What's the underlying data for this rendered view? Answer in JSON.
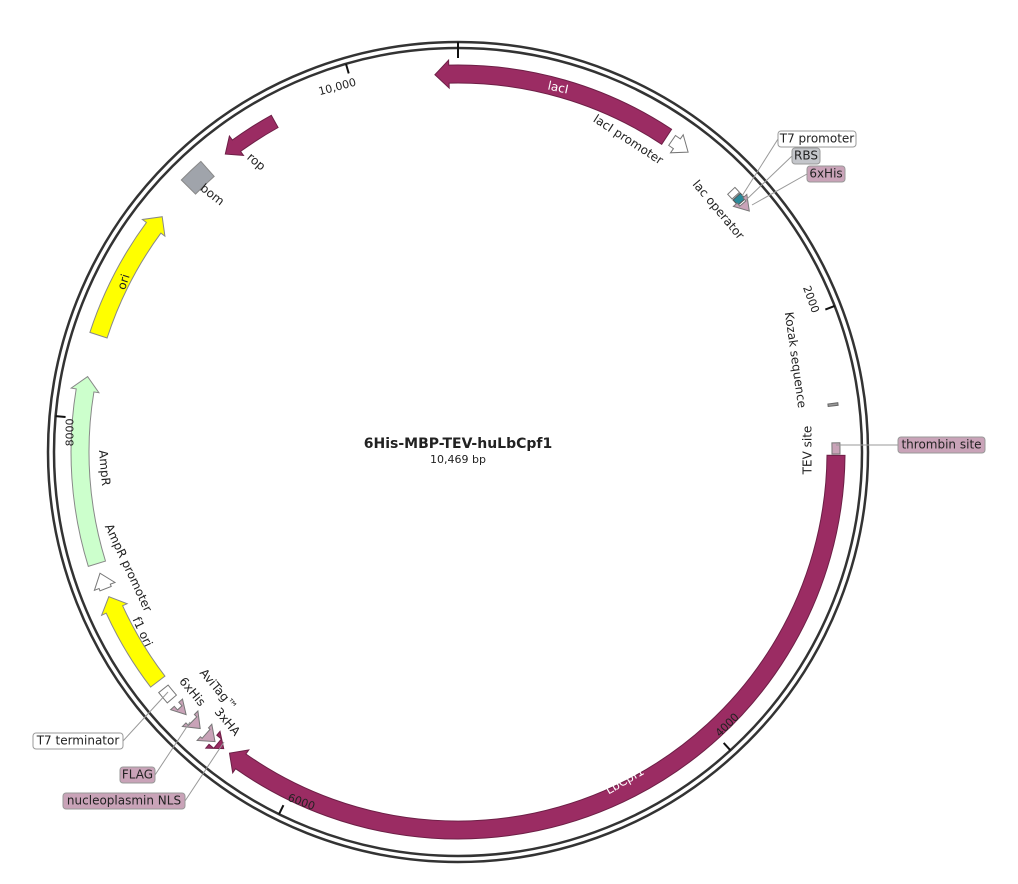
{
  "title": "6His-MBP-TEV-huLbCpf1",
  "size": "10,469 bp",
  "ticks": [
    "2000",
    "4000",
    "6000",
    "8000",
    "10,000"
  ],
  "features": [
    "lacI",
    "lacI promoter",
    "T7 promoter",
    "RBS",
    "6xHis",
    "lac operator",
    "Kozak sequence",
    "TEV site",
    "thrombin site",
    "LbCpf1",
    "nucleoplasmin NLS",
    "FLAG",
    "3xHA",
    "AviTag™",
    "6xHis",
    "T7 terminator",
    "f1 ori",
    "AmpR promoter",
    "AmpR",
    "ori",
    "bom",
    "rop"
  ]
}
